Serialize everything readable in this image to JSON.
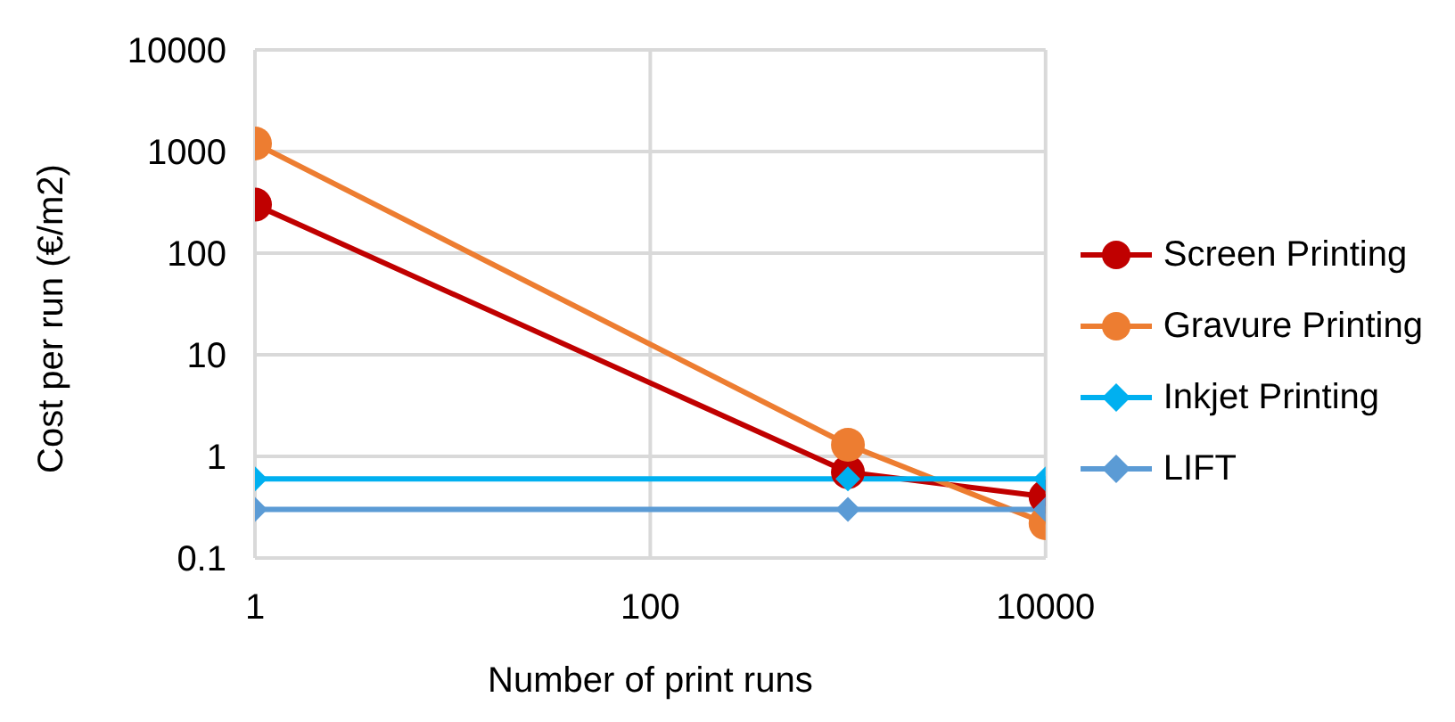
{
  "chart_data": {
    "type": "line",
    "xlabel": "Number of print runs",
    "ylabel": "Cost per run (€/m2)",
    "log": "xy",
    "x": [
      1,
      1000,
      10000
    ],
    "xlim": [
      1,
      10000
    ],
    "xticks": [
      1,
      100,
      10000
    ],
    "ylim": [
      0.1,
      10000
    ],
    "yticks": [
      0.1,
      1,
      10,
      100,
      1000,
      10000
    ],
    "grid": true,
    "legend": "right",
    "series": [
      {
        "name": "Screen Printing",
        "color": "#c00000",
        "marker": "circle",
        "values": [
          300,
          0.7,
          0.4
        ]
      },
      {
        "name": "Gravure Printing",
        "color": "#ed7d31",
        "marker": "circle",
        "values": [
          1200,
          1.3,
          0.22
        ]
      },
      {
        "name": "Inkjet Printing",
        "color": "#00b0f0",
        "marker": "diamond",
        "values": [
          0.6,
          0.6,
          0.6
        ]
      },
      {
        "name": "LIFT",
        "color": "#5b9bd5",
        "marker": "diamond",
        "values": [
          0.3,
          0.3,
          0.3
        ]
      }
    ]
  }
}
